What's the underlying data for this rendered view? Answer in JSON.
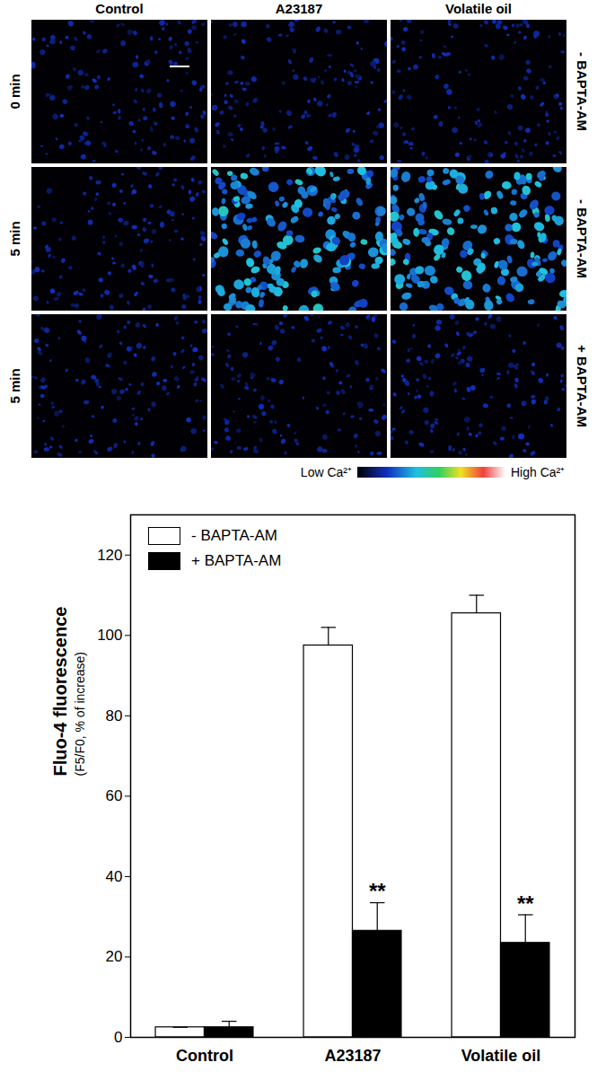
{
  "panels": {
    "columns": [
      "Control",
      "A23187",
      "Volatile oil"
    ],
    "rows": [
      {
        "label": "0 min",
        "condition": "- BAPTA-AM"
      },
      {
        "label": "5 min",
        "condition": "- BAPTA-AM"
      },
      {
        "label": "5 min",
        "condition": "+ BAPTA-AM"
      }
    ],
    "colorbar": {
      "low": "Low Ca²⁺",
      "high": "High Ca²⁺"
    }
  },
  "chart_data": {
    "type": "bar",
    "y_label": "Fluo-4 fluorescence",
    "y_sublabel": "(F5/F0, % of increase)",
    "categories": [
      "Control",
      "A23187",
      "Volatile oil"
    ],
    "series": [
      {
        "name": "- BAPTA-AM",
        "color": "#ffffff",
        "values": [
          2.5,
          97.5,
          105.5
        ],
        "errors": [
          0,
          4.5,
          4.5
        ]
      },
      {
        "name": "+ BAPTA-AM",
        "color": "#000000",
        "values": [
          2.5,
          26.5,
          23.5
        ],
        "errors": [
          1.5,
          7,
          7
        ]
      }
    ],
    "annotations": [
      {
        "category": "A23187",
        "series": "+ BAPTA-AM",
        "text": "**"
      },
      {
        "category": "Volatile oil",
        "series": "+ BAPTA-AM",
        "text": "**"
      }
    ],
    "ylim": [
      0,
      130
    ],
    "yticks": [
      0,
      20,
      40,
      60,
      80,
      100,
      120
    ],
    "legend": "top-left",
    "grid": false
  }
}
